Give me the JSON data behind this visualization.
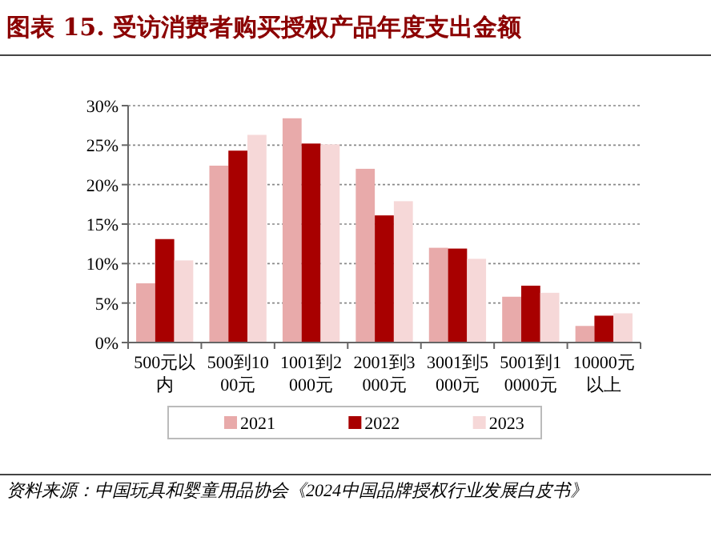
{
  "chart_data": {
    "type": "bar",
    "title": "图表 15. 受访消费者购买授权产品年度支出金额",
    "categories": [
      "500元以内",
      "500到1000元",
      "1001到2000元",
      "2001到3000元",
      "3001到5000元",
      "5001到10000元",
      "10000元以上"
    ],
    "series": [
      {
        "name": "2021",
        "color": "#e8aaaa",
        "values": [
          7.5,
          22.4,
          28.4,
          22.0,
          12.0,
          5.8,
          2.1
        ]
      },
      {
        "name": "2022",
        "color": "#a80000",
        "values": [
          13.1,
          24.3,
          25.2,
          16.1,
          11.9,
          7.2,
          3.4
        ]
      },
      {
        "name": "2023",
        "color": "#f6d8d8",
        "values": [
          10.4,
          26.3,
          25.1,
          17.9,
          10.6,
          6.3,
          3.7
        ]
      }
    ],
    "ylim": [
      0,
      30
    ],
    "yticks": [
      {
        "value": 0,
        "label": "0%"
      },
      {
        "value": 5,
        "label": "5%"
      },
      {
        "value": 10,
        "label": "10%"
      },
      {
        "value": 15,
        "label": "15%"
      },
      {
        "value": 20,
        "label": "20%"
      },
      {
        "value": 25,
        "label": "25%"
      },
      {
        "value": 30,
        "label": "30%"
      }
    ],
    "grid": "y",
    "legend": "bottom",
    "annotations": [
      "资料来源：中国玩具和婴童用品协会《2024中国品牌授权行业发展白皮书》"
    ]
  }
}
